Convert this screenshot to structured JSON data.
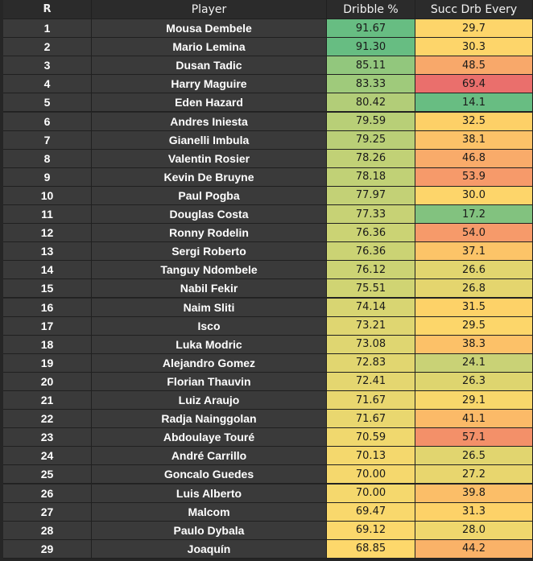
{
  "headers": {
    "rank": "R",
    "player": "Player",
    "dribble": "Dribble %",
    "succ": "Succ Drb Every"
  },
  "rows": [
    {
      "r": "1",
      "player": "Mousa Dembele",
      "dribble": "91.67",
      "succ": "29.7",
      "dribble_color": "#67bd82",
      "succ_color": "#fdd56a"
    },
    {
      "r": "2",
      "player": "Mario Lemina",
      "dribble": "91.30",
      "succ": "30.3",
      "dribble_color": "#67bd82",
      "succ_color": "#fdd56a"
    },
    {
      "r": "3",
      "player": "Dusan Tadic",
      "dribble": "85.11",
      "succ": "48.5",
      "dribble_color": "#92c77d",
      "succ_color": "#f8a86a"
    },
    {
      "r": "4",
      "player": "Harry Maguire",
      "dribble": "83.33",
      "succ": "69.4",
      "dribble_color": "#9fca7b",
      "succ_color": "#ea6f6c"
    },
    {
      "r": "5",
      "player": "Eden Hazard",
      "dribble": "80.42",
      "succ": "14.1",
      "dribble_color": "#b2cd78",
      "succ_color": "#68bd82"
    },
    {
      "r": "6",
      "player": "Andres Iniesta",
      "dribble": "79.59",
      "succ": "32.5",
      "dribble_color": "#b8cf77",
      "succ_color": "#fdd067"
    },
    {
      "r": "7",
      "player": "Gianelli Imbula",
      "dribble": "79.25",
      "succ": "38.1",
      "dribble_color": "#bacf77",
      "succ_color": "#fcc268"
    },
    {
      "r": "8",
      "player": "Valentin Rosier",
      "dribble": "78.26",
      "succ": "46.8",
      "dribble_color": "#c1d176",
      "succ_color": "#f9ab6a"
    },
    {
      "r": "9",
      "player": "Kevin De Bruyne",
      "dribble": "78.18",
      "succ": "53.9",
      "dribble_color": "#c1d176",
      "succ_color": "#f69a6a"
    },
    {
      "r": "10",
      "player": "Paul Pogba",
      "dribble": "77.97",
      "succ": "30.0",
      "dribble_color": "#c3d176",
      "succ_color": "#fdd56a"
    },
    {
      "r": "11",
      "player": "Douglas Costa",
      "dribble": "77.33",
      "succ": "17.2",
      "dribble_color": "#c7d275",
      "succ_color": "#82c27f"
    },
    {
      "r": "12",
      "player": "Ronny Rodelin",
      "dribble": "76.36",
      "succ": "54.0",
      "dribble_color": "#cbd374",
      "succ_color": "#f69a6a"
    },
    {
      "r": "13",
      "player": "Sergi Roberto",
      "dribble": "76.36",
      "succ": "37.1",
      "dribble_color": "#cbd374",
      "succ_color": "#fcc468"
    },
    {
      "r": "14",
      "player": "Tanguy Ndombele",
      "dribble": "76.12",
      "succ": "26.6",
      "dribble_color": "#ccd374",
      "succ_color": "#e2d56f"
    },
    {
      "r": "15",
      "player": "Nabil Fekir",
      "dribble": "75.51",
      "succ": "26.8",
      "dribble_color": "#d0d473",
      "succ_color": "#e4d56e"
    },
    {
      "r": "16",
      "player": "Naim Sliti",
      "dribble": "74.14",
      "succ": "31.5",
      "dribble_color": "#d8d572",
      "succ_color": "#fdd268"
    },
    {
      "r": "17",
      "player": "Isco",
      "dribble": "73.21",
      "succ": "29.5",
      "dribble_color": "#dfd671",
      "succ_color": "#fcd66a"
    },
    {
      "r": "18",
      "player": "Luka Modric",
      "dribble": "73.08",
      "succ": "38.3",
      "dribble_color": "#dfd671",
      "succ_color": "#fcc168"
    },
    {
      "r": "19",
      "player": "Alejandro Gomez",
      "dribble": "72.83",
      "succ": "24.1",
      "dribble_color": "#e1d670",
      "succ_color": "#c9d276"
    },
    {
      "r": "20",
      "player": "Florian Thauvin",
      "dribble": "72.41",
      "succ": "26.3",
      "dribble_color": "#e4d670",
      "succ_color": "#ded56f"
    },
    {
      "r": "21",
      "player": "Luiz Araujo",
      "dribble": "71.67",
      "succ": "29.1",
      "dribble_color": "#e9d76f",
      "succ_color": "#f8d76b"
    },
    {
      "r": "22",
      "player": "Radja Nainggolan",
      "dribble": "71.67",
      "succ": "41.1",
      "dribble_color": "#e9d76f",
      "succ_color": "#fbba68"
    },
    {
      "r": "23",
      "player": "Abdoulaye Touré",
      "dribble": "70.59",
      "succ": "57.1",
      "dribble_color": "#f0d86e",
      "succ_color": "#f39069"
    },
    {
      "r": "24",
      "player": "André Carrillo",
      "dribble": "70.13",
      "succ": "26.5",
      "dribble_color": "#f4d86d",
      "succ_color": "#e1d56f"
    },
    {
      "r": "25",
      "player": "Goncalo Guedes",
      "dribble": "70.00",
      "succ": "27.2",
      "dribble_color": "#f5d86d",
      "succ_color": "#e8d66e"
    },
    {
      "r": "26",
      "player": "Luis Alberto",
      "dribble": "70.00",
      "succ": "39.8",
      "dribble_color": "#f5d86d",
      "succ_color": "#fbbe68"
    },
    {
      "r": "27",
      "player": "Malcom",
      "dribble": "69.47",
      "succ": "31.3",
      "dribble_color": "#f9d86c",
      "succ_color": "#fdd268"
    },
    {
      "r": "28",
      "player": "Paulo Dybala",
      "dribble": "69.12",
      "succ": "28.0",
      "dribble_color": "#fbd86c",
      "succ_color": "#efd76d"
    },
    {
      "r": "29",
      "player": "Joaquín",
      "dribble": "68.85",
      "succ": "44.2",
      "dribble_color": "#fdd86b",
      "succ_color": "#fab268"
    }
  ]
}
